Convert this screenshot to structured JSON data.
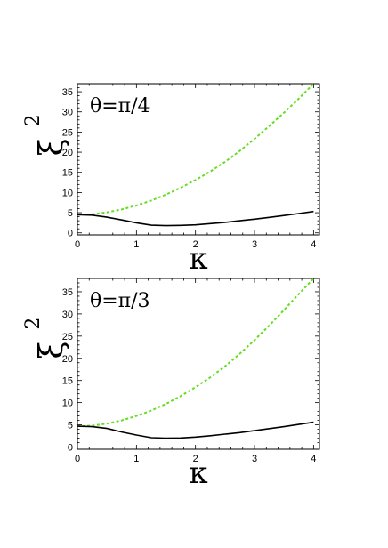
{
  "chart_data": [
    {
      "type": "line",
      "annotation": "θ=π/4",
      "xlabel": "κ",
      "ylabel": "ξ",
      "ylabel_exponent": "2",
      "xlim": [
        0,
        4.1
      ],
      "ylim": [
        -0.5,
        37
      ],
      "xticks": [
        0,
        1,
        2,
        3,
        4
      ],
      "yticks": [
        0,
        5,
        10,
        15,
        20,
        25,
        30,
        35
      ],
      "series": [
        {
          "style": "dashed",
          "color": "#66dd22",
          "x": [
            0,
            0.25,
            0.5,
            0.75,
            1,
            1.25,
            1.5,
            1.75,
            2,
            2.25,
            2.5,
            2.75,
            3,
            3.25,
            3.5,
            3.75,
            4
          ],
          "y": [
            4.5,
            4.6,
            5.1,
            5.8,
            6.8,
            8.0,
            9.5,
            11.2,
            13.1,
            15.2,
            17.6,
            20.3,
            23.3,
            26.5,
            29.8,
            33.3,
            37.0
          ]
        },
        {
          "style": "solid",
          "color": "#000000",
          "x": [
            0,
            0.25,
            0.5,
            0.75,
            1,
            1.25,
            1.5,
            1.75,
            2,
            2.25,
            2.5,
            2.75,
            3,
            3.25,
            3.5,
            3.75,
            4
          ],
          "y": [
            4.5,
            4.4,
            3.9,
            3.2,
            2.5,
            1.9,
            1.8,
            1.85,
            2.0,
            2.3,
            2.6,
            3.0,
            3.4,
            3.85,
            4.3,
            4.8,
            5.3
          ]
        }
      ]
    },
    {
      "type": "line",
      "annotation": "θ=π/3",
      "xlabel": "κ",
      "ylabel": "ξ",
      "ylabel_exponent": "2",
      "xlim": [
        0,
        4.1
      ],
      "ylim": [
        -0.5,
        38
      ],
      "xticks": [
        0,
        1,
        2,
        3,
        4
      ],
      "yticks": [
        0,
        5,
        10,
        15,
        20,
        25,
        30,
        35
      ],
      "series": [
        {
          "style": "dashed",
          "color": "#66dd22",
          "x": [
            0,
            0.25,
            0.5,
            0.75,
            1,
            1.25,
            1.5,
            1.75,
            2,
            2.25,
            2.5,
            2.75,
            3,
            3.25,
            3.5,
            3.75,
            4
          ],
          "y": [
            4.7,
            4.8,
            5.3,
            6.0,
            7.0,
            8.2,
            9.7,
            11.5,
            13.5,
            15.7,
            18.2,
            21.0,
            24.1,
            27.4,
            30.9,
            34.5,
            38.0
          ]
        },
        {
          "style": "solid",
          "color": "#000000",
          "x": [
            0,
            0.25,
            0.5,
            0.75,
            1,
            1.25,
            1.5,
            1.75,
            2,
            2.25,
            2.5,
            2.75,
            3,
            3.25,
            3.5,
            3.75,
            4
          ],
          "y": [
            4.7,
            4.6,
            4.2,
            3.4,
            2.7,
            2.1,
            2.0,
            2.05,
            2.25,
            2.55,
            2.9,
            3.25,
            3.7,
            4.15,
            4.6,
            5.1,
            5.6
          ]
        }
      ]
    }
  ]
}
